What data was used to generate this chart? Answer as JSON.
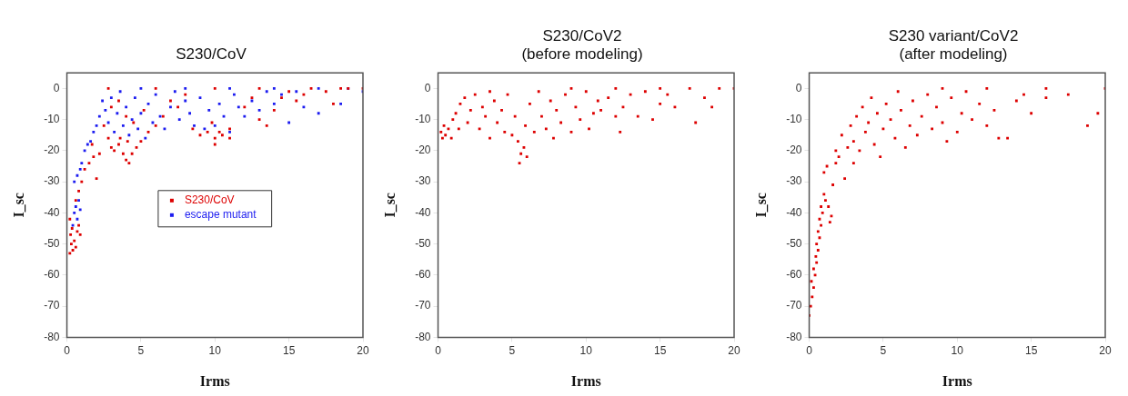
{
  "chart_data": [
    {
      "type": "scatter",
      "title": "S230/CoV",
      "xlabel": "Irms",
      "ylabel": "I_sc",
      "xlim": [
        0,
        20
      ],
      "xticks": [
        0,
        5,
        10,
        15,
        20
      ],
      "ylim": [
        -80,
        5
      ],
      "yticks": [
        -80,
        -70,
        -60,
        -50,
        -40,
        -30,
        -20,
        -10,
        0
      ],
      "grid": false,
      "marker": "square",
      "legend": "center",
      "series": [
        {
          "name": "S230/CoV",
          "color": "#dd0000",
          "x": [
            0.2,
            0.3,
            0.25,
            0.4,
            0.5,
            0.35,
            0.6,
            0.7,
            0.8,
            0.9,
            0.2,
            0.6,
            0.8,
            1.0,
            1.2,
            1.5,
            1.8,
            2.0,
            2.2,
            1.7,
            2.5,
            2.8,
            3.0,
            3.2,
            3.5,
            3.8,
            4.0,
            4.2,
            4.4,
            4.7,
            3.6,
            4.1,
            5.0,
            5.5,
            6.0,
            3.0,
            3.5,
            4.0,
            4.5,
            5.2,
            6.5,
            7.0,
            7.5,
            8.0,
            8.5,
            9.0,
            9.5,
            10.0,
            10.0,
            10.5,
            11.0,
            11.0,
            10.3,
            9.8,
            12,
            12.5,
            13,
            13.5,
            14,
            14.5,
            15,
            15.5,
            16,
            17.5,
            18,
            18.5,
            19,
            2.8,
            6,
            10,
            13,
            16.5,
            20
          ],
          "values": [
            -53,
            -50,
            -47,
            -52,
            -49,
            -45,
            -51,
            -46,
            -44,
            -47,
            -42,
            -36,
            -33,
            -30,
            -26,
            -24,
            -22,
            -29,
            -21,
            -18,
            -12,
            -16,
            -19,
            -20,
            -18,
            -21,
            -23,
            -24,
            -21,
            -19,
            -16,
            -17,
            -17,
            -14,
            -12,
            -6,
            -4,
            -9,
            -11,
            -7,
            -9,
            -4,
            -6,
            -2,
            -13,
            -15,
            -14,
            -16,
            -18,
            -15,
            -13,
            -16,
            -14,
            -11,
            -6,
            -3,
            -10,
            -12,
            -7,
            -3,
            -1,
            -4,
            -2,
            -1,
            -5,
            0,
            0,
            0,
            0,
            0,
            0,
            0,
            0
          ]
        },
        {
          "name": "escape mutant",
          "color": "#1c1cf0",
          "x": [
            0.4,
            0.5,
            0.6,
            0.7,
            0.8,
            0.9,
            0.5,
            0.7,
            0.9,
            1.0,
            1.2,
            1.4,
            1.6,
            1.8,
            2.0,
            2.2,
            2.4,
            2.6,
            2.8,
            3.0,
            3.2,
            3.4,
            3.6,
            3.8,
            4.0,
            4.2,
            4.4,
            4.6,
            4.8,
            5.0,
            5.3,
            5.5,
            5.8,
            6.0,
            6.3,
            6.6,
            7.0,
            7.3,
            7.6,
            8.0,
            8.3,
            8.6,
            9.0,
            9.3,
            9.6,
            10,
            10.3,
            10.6,
            11,
            11.3,
            11.6,
            12,
            12.5,
            13,
            13.5,
            14,
            14.5,
            15,
            15.5,
            16,
            17,
            18.5,
            19,
            20,
            17,
            14,
            5,
            8,
            11
          ],
          "values": [
            -44,
            -40,
            -38,
            -42,
            -36,
            -39,
            -30,
            -28,
            -26,
            -24,
            -20,
            -18,
            -17,
            -14,
            -12,
            -9,
            -4,
            -7,
            -11,
            -3,
            -14,
            -8,
            -1,
            -12,
            -6,
            -15,
            -10,
            -3,
            -13,
            -8,
            -16,
            -5,
            -11,
            -2,
            -9,
            -13,
            -6,
            -1,
            -10,
            -4,
            -8,
            -12,
            -3,
            -13,
            -7,
            -12,
            -5,
            -9,
            -14,
            -2,
            -6,
            -9,
            -4,
            -7,
            -1,
            -5,
            -2,
            -11,
            -1,
            -6,
            -8,
            -5,
            0,
            -1,
            0,
            0,
            0,
            0,
            0
          ]
        }
      ]
    },
    {
      "type": "scatter",
      "title": "S230/CoV2\n(before modeling)",
      "xlabel": "Irms",
      "ylabel": "I_sc",
      "xlim": [
        0,
        20
      ],
      "xticks": [
        0,
        5,
        10,
        15,
        20
      ],
      "ylim": [
        -80,
        5
      ],
      "yticks": [
        -80,
        -70,
        -60,
        -50,
        -40,
        -30,
        -20,
        -10,
        0
      ],
      "grid": false,
      "marker": "square",
      "series": [
        {
          "color": "#dd0000",
          "x": [
            0.2,
            0.3,
            0.5,
            0.7,
            0.9,
            0.4,
            1.0,
            1.2,
            1.4,
            1.5,
            1.8,
            2.0,
            2.2,
            2.5,
            2.8,
            3.0,
            3.2,
            3.5,
            3.5,
            3.8,
            4.0,
            4.3,
            4.5,
            4.7,
            5.0,
            5.2,
            5.4,
            5.5,
            5.6,
            5.8,
            6.0,
            5.9,
            6.2,
            6.5,
            6.8,
            7.0,
            7.3,
            7.6,
            7.8,
            8.0,
            8.3,
            8.6,
            9.0,
            9.3,
            9.6,
            10,
            10.2,
            10.5,
            10.8,
            11,
            11.5,
            12,
            12.3,
            12.5,
            13,
            13.5,
            14,
            14.5,
            15,
            15.5,
            16,
            17,
            17.4,
            18,
            18.5,
            19,
            20,
            12,
            15,
            9
          ],
          "values": [
            -14,
            -16,
            -15,
            -13,
            -16,
            -12,
            -10,
            -8,
            -13,
            -5,
            -3,
            -11,
            -7,
            -2,
            -13,
            -6,
            -9,
            -16,
            -1,
            -4,
            -11,
            -7,
            -14,
            -2,
            -15,
            -9,
            -17,
            -24,
            -21,
            -19,
            -22,
            -12,
            -5,
            -14,
            -1,
            -9,
            -13,
            -4,
            -16,
            -7,
            -11,
            -2,
            -14,
            -6,
            -10,
            -1,
            -13,
            -8,
            -4,
            -7,
            -3,
            -9,
            -14,
            -6,
            -2,
            -9,
            -1,
            -10,
            -5,
            -2,
            -6,
            0,
            -11,
            -3,
            -6,
            0,
            0,
            0,
            0,
            0
          ]
        }
      ]
    },
    {
      "type": "scatter",
      "title": "S230 variant/CoV2\n(after modeling)",
      "xlabel": "Irms",
      "ylabel": "I_sc",
      "xlim": [
        0,
        20
      ],
      "xticks": [
        0,
        5,
        10,
        15,
        20
      ],
      "ylim": [
        -80,
        5
      ],
      "yticks": [
        -80,
        -70,
        -60,
        -50,
        -40,
        -30,
        -20,
        -10,
        0
      ],
      "grid": false,
      "marker": "square",
      "series": [
        {
          "color": "#dd0000",
          "x": [
            0.0,
            0.1,
            0.2,
            0.15,
            0.3,
            0.3,
            0.4,
            0.45,
            0.5,
            0.5,
            0.6,
            0.6,
            0.7,
            0.7,
            0.8,
            0.8,
            0.9,
            1.0,
            1.1,
            1.3,
            1.4,
            1.5,
            1.0,
            1.2,
            1.6,
            1.8,
            1.8,
            2.0,
            2.2,
            2.4,
            2.6,
            2.8,
            3.0,
            3.0,
            3.2,
            3.4,
            3.6,
            3.8,
            4.0,
            4.2,
            4.4,
            4.6,
            4.8,
            5.0,
            5.2,
            5.5,
            5.8,
            6.0,
            6.2,
            6.5,
            6.8,
            7.0,
            7.3,
            7.6,
            8.0,
            8.3,
            8.6,
            9.0,
            9.3,
            9.6,
            10,
            10.3,
            10.6,
            11,
            11.5,
            12,
            12.5,
            12.8,
            13.4,
            14,
            14.5,
            15,
            16,
            17.5,
            18.8,
            19.5,
            20,
            16,
            12,
            9
          ],
          "values": [
            -73,
            -70,
            -67,
            -62,
            -64,
            -58,
            -60,
            -54,
            -56,
            -50,
            -52,
            -46,
            -48,
            -42,
            -44,
            -38,
            -40,
            -34,
            -36,
            -38,
            -43,
            -41,
            -27,
            -25,
            -31,
            -24,
            -20,
            -22,
            -15,
            -29,
            -19,
            -12,
            -17,
            -24,
            -9,
            -20,
            -6,
            -14,
            -11,
            -3,
            -18,
            -8,
            -22,
            -13,
            -5,
            -10,
            -16,
            -1,
            -7,
            -19,
            -12,
            -4,
            -15,
            -9,
            -2,
            -13,
            -6,
            -11,
            -17,
            -3,
            -14,
            -8,
            -1,
            -10,
            -5,
            -12,
            -7,
            -16,
            -16,
            -4,
            -2,
            -8,
            -3,
            -2,
            -12,
            -8,
            0,
            0,
            0,
            0
          ]
        }
      ]
    }
  ]
}
